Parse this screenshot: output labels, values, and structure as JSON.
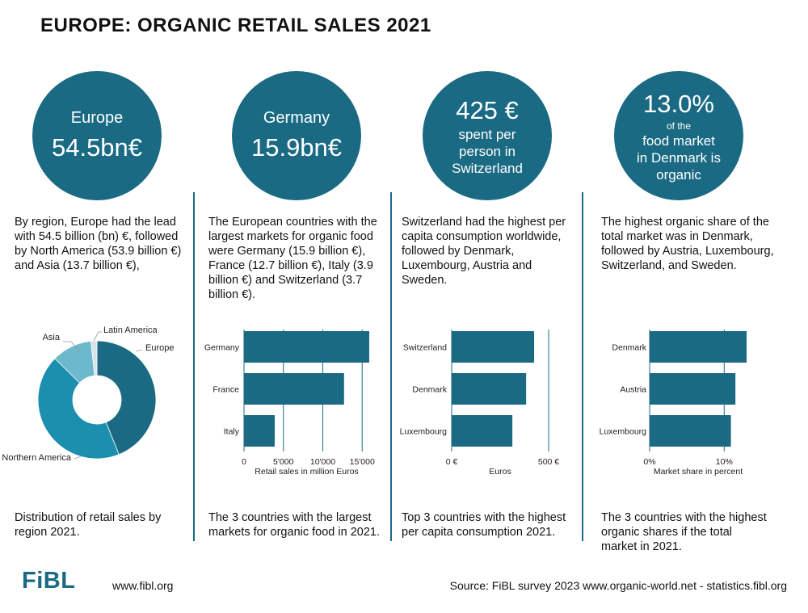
{
  "title": "EUROPE: ORGANIC RETAIL SALES 2021",
  "colors": {
    "primary": "#1a6a84",
    "bar": "#1a6a84",
    "donut_europe": "#1a6a84",
    "donut_namerica": "#1b8fad",
    "donut_asia": "#6cb8cc",
    "donut_latam": "#d8e4e9"
  },
  "circles": [
    {
      "line1": "Europe",
      "line2": "54.5bn€"
    },
    {
      "line1": "Germany",
      "line2": "15.9bn€"
    },
    {
      "line1": "425 €",
      "line2": "spent per",
      "line3": "person in",
      "line4": "Switzerland"
    },
    {
      "line1": "13.0%",
      "line2": "of the",
      "line3": "food market",
      "line4": "in Denmark is",
      "line5": "organic"
    }
  ],
  "texts": [
    "By region, Europe had the lead with 54.5 billion (bn) €, followed by North America (53.9 billion €) and Asia (13.7 billion €),",
    "The European countries with the largest markets for organic food were Germany (15.9 billion €), France (12.7 billion €), Italy (3.9 billion €) and Switzerland (3.7 billion €).",
    "Switzerland had the highest per capita consumption worldwide, followed by Denmark, Luxembourg,  Austria and Sweden.",
    "The highest organic share of the total market was in Denmark, followed by Austria, Luxembourg, Switzerland, and Sweden."
  ],
  "captions": [
    "Distribution of retail sales by region 2021.",
    "The 3 countries with the largest markets for organic food in 2021.",
    "Top 3 countries with the highest per capita consumption 2021.",
    "The 3 countries with the highest organic shares if the total market in 2021."
  ],
  "chart_data": [
    {
      "type": "pie",
      "categories": [
        "Europe",
        "Northern America",
        "Asia",
        "Latin America"
      ],
      "values": [
        54.5,
        53.9,
        13.7,
        2.0
      ]
    },
    {
      "type": "bar",
      "orientation": "horizontal",
      "categories": [
        "Germany",
        "France",
        "Italy"
      ],
      "values": [
        15900,
        12700,
        3900
      ],
      "xlabel": "Retail sales in million Euros",
      "xlim": [
        0,
        15900
      ],
      "ticks": [
        0,
        5000,
        10000,
        15000
      ],
      "tick_labels": [
        "0",
        "5'000",
        "10'000",
        "15'000"
      ],
      "grid": true
    },
    {
      "type": "bar",
      "orientation": "horizontal",
      "categories": [
        "Switzerland",
        "Denmark",
        "Luxembourg"
      ],
      "values": [
        425,
        384,
        313
      ],
      "xlabel": "Euros",
      "xlim": [
        0,
        500
      ],
      "ticks": [
        0,
        500
      ],
      "tick_labels": [
        "0 €",
        "500 €"
      ],
      "grid": true
    },
    {
      "type": "bar",
      "orientation": "horizontal",
      "categories": [
        "Denmark",
        "Austria",
        "Luxembourg"
      ],
      "values": [
        13.0,
        11.5,
        10.9
      ],
      "xlabel": "Market share in percent",
      "xlim": [
        0,
        13.0
      ],
      "ticks": [
        0,
        10
      ],
      "tick_labels": [
        "0%",
        "10%"
      ],
      "grid": true
    }
  ],
  "footer": {
    "logo": "FiBL",
    "url": "www.fibl.org",
    "source": "Source: FiBL survey 2023 www.organic-world.net - statistics.fibl.org"
  }
}
